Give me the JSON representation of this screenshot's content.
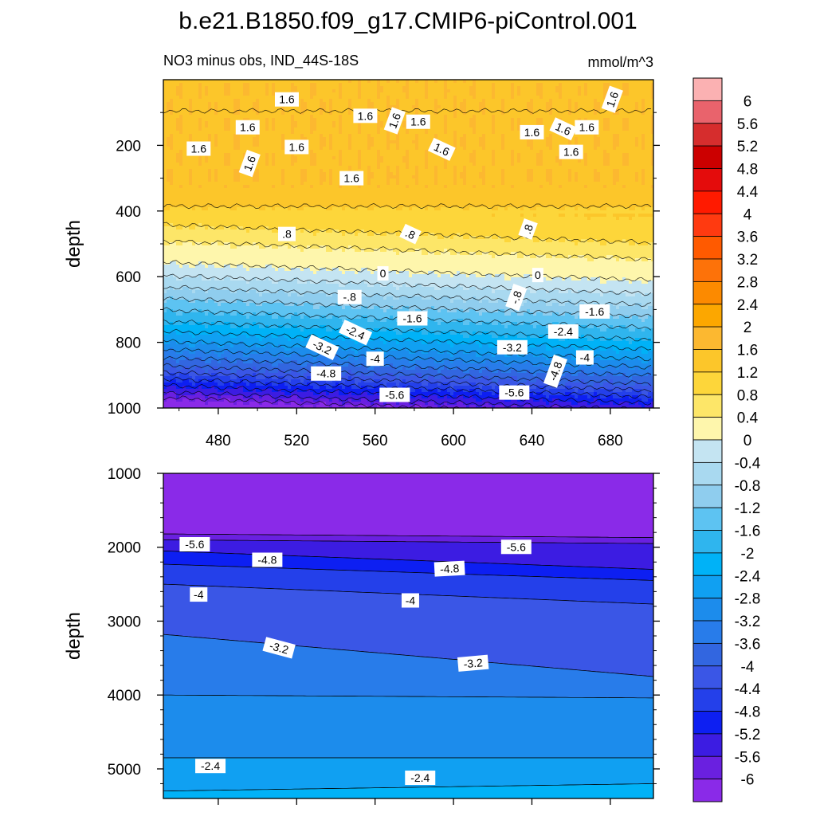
{
  "title": "b.e21.B1850.f09_g17.CMIP6-piControl.001",
  "subtitle": "NO3 minus obs, IND_44S-18S",
  "units": "mmol/m^3",
  "chart_data": [
    {
      "type": "heatmap",
      "panel": "upper",
      "ylabel": "depth",
      "xlabel": "",
      "xlim": [
        452,
        702
      ],
      "ylim": [
        1000,
        0
      ],
      "xticks": [
        480,
        520,
        560,
        600,
        640,
        680
      ],
      "yticks": [
        200,
        400,
        600,
        800,
        1000
      ],
      "contour_levels": [
        {
          "depth": 95,
          "value": 1.6
        },
        {
          "depth": 385,
          "value": 1.2
        },
        {
          "depth": 465,
          "value": 0.8
        },
        {
          "depth": 515,
          "value": 0.4
        },
        {
          "depth": 580,
          "value": 0
        },
        {
          "depth": 620,
          "value": -0.4
        },
        {
          "depth": 655,
          "value": -0.8
        },
        {
          "depth": 690,
          "value": -1.2
        },
        {
          "depth": 725,
          "value": -1.6
        },
        {
          "depth": 760,
          "value": -2.0
        },
        {
          "depth": 790,
          "value": -2.4
        },
        {
          "depth": 820,
          "value": -2.8
        },
        {
          "depth": 845,
          "value": -3.2
        },
        {
          "depth": 870,
          "value": -3.6
        },
        {
          "depth": 895,
          "value": -4.0
        },
        {
          "depth": 915,
          "value": -4.4
        },
        {
          "depth": 935,
          "value": -4.8
        },
        {
          "depth": 955,
          "value": -5.2
        },
        {
          "depth": 975,
          "value": -5.6
        },
        {
          "depth": 992,
          "value": -6.0
        }
      ],
      "contour_labels": [
        {
          "x": 515,
          "depth": 60,
          "text": "1.6"
        },
        {
          "x": 681,
          "depth": 60,
          "text": "1.6"
        },
        {
          "x": 555,
          "depth": 110,
          "text": "1.6"
        },
        {
          "x": 570,
          "depth": 125,
          "text": "1.6"
        },
        {
          "x": 582,
          "depth": 128,
          "text": "1.6"
        },
        {
          "x": 495,
          "depth": 145,
          "text": "1.6"
        },
        {
          "x": 656,
          "depth": 150,
          "text": "1.6"
        },
        {
          "x": 668,
          "depth": 145,
          "text": "1.6"
        },
        {
          "x": 470,
          "depth": 210,
          "text": "1.6"
        },
        {
          "x": 520,
          "depth": 205,
          "text": "1.6"
        },
        {
          "x": 594,
          "depth": 212,
          "text": "1.6"
        },
        {
          "x": 496,
          "depth": 255,
          "text": "1.6"
        },
        {
          "x": 640,
          "depth": 160,
          "text": "1.6"
        },
        {
          "x": 660,
          "depth": 220,
          "text": "1.6"
        },
        {
          "x": 548,
          "depth": 300,
          "text": "1.6"
        },
        {
          "x": 515,
          "depth": 470,
          "text": ".8"
        },
        {
          "x": 578,
          "depth": 470,
          "text": ".8"
        },
        {
          "x": 638,
          "depth": 455,
          "text": ".8"
        },
        {
          "x": 564,
          "depth": 590,
          "text": "0"
        },
        {
          "x": 643,
          "depth": 595,
          "text": "0"
        },
        {
          "x": 547,
          "depth": 662,
          "text": "-.8"
        },
        {
          "x": 632,
          "depth": 663,
          "text": "-.8"
        },
        {
          "x": 579,
          "depth": 727,
          "text": "-1.6"
        },
        {
          "x": 672,
          "depth": 706,
          "text": "-1.6"
        },
        {
          "x": 550,
          "depth": 770,
          "text": "-2.4"
        },
        {
          "x": 656,
          "depth": 767,
          "text": "-2.4"
        },
        {
          "x": 533,
          "depth": 815,
          "text": "-3.2"
        },
        {
          "x": 630,
          "depth": 815,
          "text": "-3.2"
        },
        {
          "x": 560,
          "depth": 850,
          "text": "-4"
        },
        {
          "x": 667,
          "depth": 846,
          "text": "-4"
        },
        {
          "x": 535,
          "depth": 895,
          "text": "-4.8"
        },
        {
          "x": 652,
          "depth": 888,
          "text": "-4.8"
        },
        {
          "x": 570,
          "depth": 960,
          "text": "-5.6"
        },
        {
          "x": 631,
          "depth": 953,
          "text": "-5.6"
        }
      ]
    },
    {
      "type": "heatmap",
      "panel": "lower",
      "ylabel": "depth",
      "xlabel": "",
      "xlim": [
        452,
        702
      ],
      "ylim": [
        5400,
        1000
      ],
      "yticks": [
        1000,
        2000,
        3000,
        4000,
        5000
      ],
      "contour_labels": [
        {
          "x": 468,
          "depth": 1960,
          "text": "-5.6"
        },
        {
          "x": 632,
          "depth": 1995,
          "text": "-5.6"
        },
        {
          "x": 505,
          "depth": 2170,
          "text": "-4.8"
        },
        {
          "x": 598,
          "depth": 2290,
          "text": "-4.8"
        },
        {
          "x": 470,
          "depth": 2640,
          "text": "-4"
        },
        {
          "x": 578,
          "depth": 2720,
          "text": "-4"
        },
        {
          "x": 511,
          "depth": 3360,
          "text": "-3.2"
        },
        {
          "x": 610,
          "depth": 3570,
          "text": "-3.2"
        },
        {
          "x": 476,
          "depth": 4960,
          "text": "-2.4"
        },
        {
          "x": 583,
          "depth": 5120,
          "text": "-2.4"
        }
      ]
    }
  ],
  "colorbar": {
    "labels": [
      "6",
      "5.6",
      "5.2",
      "4.8",
      "4.4",
      "4",
      "3.6",
      "3.2",
      "2.8",
      "2.4",
      "2",
      "1.6",
      "1.2",
      "0.8",
      "0.4",
      "0",
      "-0.4",
      "-0.8",
      "-1.2",
      "-1.6",
      "-2",
      "-2.4",
      "-2.8",
      "-3.2",
      "-3.6",
      "-4",
      "-4.4",
      "-4.8",
      "-5.2",
      "-5.6",
      "-6"
    ],
    "colors": [
      "#fbb1b2",
      "#e9636c",
      "#d62d2d",
      "#cc0000",
      "#e40c0c",
      "#ff1a00",
      "#ff3a10",
      "#ff5a00",
      "#fd7209",
      "#fc8a00",
      "#fca700",
      "#fcb830",
      "#fcc62a",
      "#fdd63a",
      "#fde668",
      "#fef6ac",
      "#c4e4f2",
      "#a9d9f0",
      "#8fcdee",
      "#5dc3f2",
      "#2fb5ee",
      "#00b2f7",
      "#10a0f2",
      "#1c8cec",
      "#287cea",
      "#3266e0",
      "#3a56e6",
      "#2440ea",
      "#0d1ff2",
      "#3c1ce2",
      "#6a20e0",
      "#8a2ae8"
    ]
  }
}
